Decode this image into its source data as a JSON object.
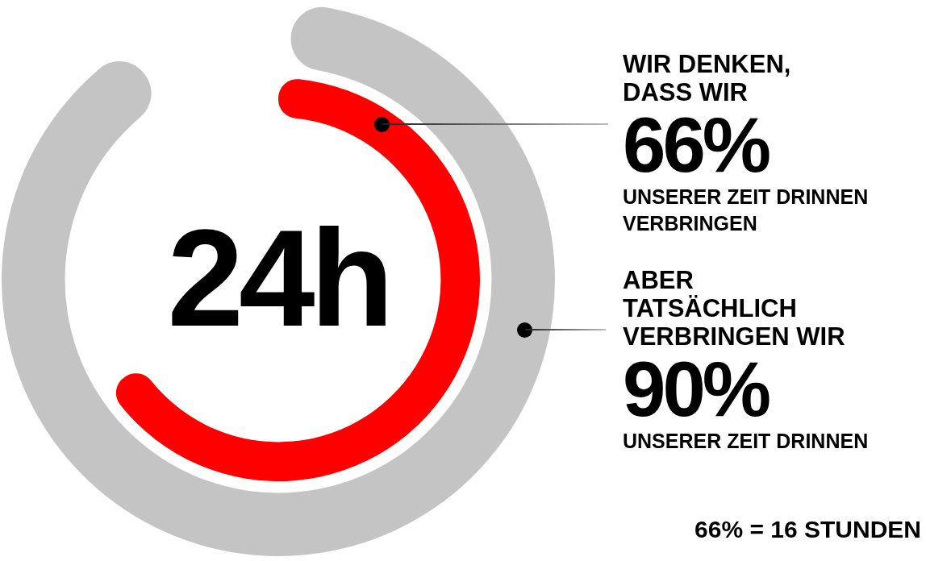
{
  "chart_data": {
    "type": "other",
    "categories": [
      "WIR DENKEN, DASS WIR",
      "ABER TATSÄCHLICH VERBRINGEN WIR"
    ],
    "values": [
      66,
      90
    ],
    "colors": [
      "#ff0000",
      "#c4c4c4"
    ],
    "value_labels": [
      "66%",
      "90%"
    ],
    "annotations": [
      "UNSERER ZEIT DRINNEN VERBRINGEN",
      "UNSERER ZEIT DRINNEN",
      "24h",
      "66% = 16 STUNDEN"
    ]
  }
}
